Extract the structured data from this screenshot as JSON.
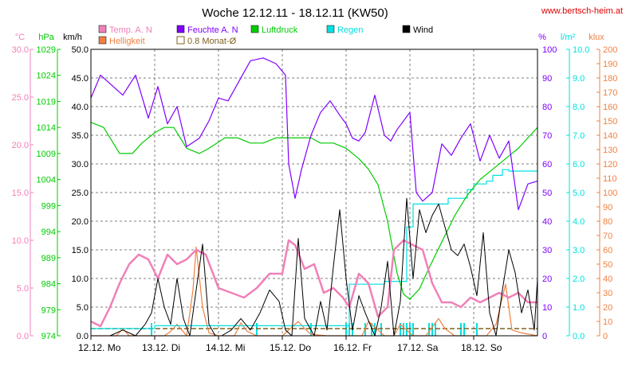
{
  "header": {
    "title": "Woche 12.12.11 - 18.12.11 (KW50)",
    "site": "www.bertsch-heim.at"
  },
  "legend": [
    {
      "label": "Temp. A. N",
      "color": "#f080b8",
      "type": "fill"
    },
    {
      "label": "Feuchte A. N",
      "color": "#8000ff",
      "type": "fill"
    },
    {
      "label": "Luftdruck",
      "color": "#00cc00",
      "type": "fill"
    },
    {
      "label": "Regen",
      "color": "#00e0e0",
      "type": "fill"
    },
    {
      "label": "Wind",
      "color": "#000000",
      "type": "fill"
    },
    {
      "label": "Helligkeit",
      "color": "#f08040",
      "type": "fill"
    },
    {
      "label": "0.8 Monat-Ø",
      "color": "#806020",
      "type": "outline"
    }
  ],
  "axes_units": {
    "temp": "°C",
    "press": "hPa",
    "wind": "km/h",
    "hum": "%",
    "rain": "l/m²",
    "lux": "klux"
  },
  "colors": {
    "temp": "#f080b8",
    "press": "#00cc00",
    "wind": "#000000",
    "hum": "#8000ff",
    "rain": "#00e0e0",
    "lux": "#f08040",
    "avg": "#806020",
    "grid": "#808080",
    "site": "#e00000"
  },
  "chart_data": {
    "type": "line",
    "x_ticks": [
      "12.12. Mo",
      "13.12. Di",
      "14.12. Mi",
      "15.12. Do",
      "16.12. Fr",
      "17.12. Sa",
      "18.12. So"
    ],
    "y_axes": {
      "temp": {
        "ticks": [
          "30.0",
          "25.0",
          "20.0",
          "15.0",
          "10.0",
          "5.0",
          "0.0"
        ],
        "range": [
          0,
          30
        ]
      },
      "press": {
        "ticks": [
          "1029",
          "1024",
          "1019",
          "1014",
          "1009",
          "1004",
          "999",
          "994",
          "989",
          "984",
          "979",
          "974"
        ],
        "range": [
          974,
          1029
        ]
      },
      "wind": {
        "ticks": [
          "50.0",
          "45.0",
          "40.0",
          "35.0",
          "30.0",
          "25.0",
          "20.0",
          "15.0",
          "10.0",
          "5.0",
          "0.0"
        ],
        "range": [
          0,
          50
        ]
      },
      "hum": {
        "ticks": [
          "100",
          "90",
          "80",
          "70",
          "60",
          "50",
          "40",
          "30",
          "20",
          "10",
          "0"
        ],
        "range": [
          0,
          100
        ]
      },
      "rain": {
        "ticks": [
          "10.0",
          "9.0",
          "8.0",
          "7.0",
          "6.0",
          "5.0",
          "4.0",
          "3.0",
          "2.0",
          "1.0",
          "0.0"
        ],
        "range": [
          0,
          10
        ]
      },
      "lux": {
        "ticks": [
          "200",
          "190",
          "180",
          "170",
          "160",
          "150",
          "140",
          "130",
          "120",
          "110",
          "100",
          "90",
          "80",
          "70",
          "60",
          "50",
          "40",
          "30",
          "20",
          "10",
          "0"
        ],
        "range": [
          0,
          200
        ]
      }
    },
    "x_range": [
      0,
      7
    ],
    "series": [
      {
        "name": "Feuchte A. N",
        "axis": "hum",
        "color": "#8000ff",
        "x": [
          0,
          0.15,
          0.3,
          0.5,
          0.7,
          0.9,
          1.05,
          1.2,
          1.35,
          1.5,
          1.7,
          1.85,
          2.0,
          2.15,
          2.3,
          2.5,
          2.7,
          2.9,
          3.05,
          3.1,
          3.2,
          3.3,
          3.45,
          3.6,
          3.75,
          3.9,
          4.0,
          4.1,
          4.2,
          4.3,
          4.45,
          4.6,
          4.7,
          4.8,
          5.0,
          5.1,
          5.2,
          5.35,
          5.5,
          5.65,
          5.8,
          5.95,
          6.1,
          6.25,
          6.4,
          6.55,
          6.7,
          6.85,
          7.0
        ],
        "y": [
          83,
          91,
          88,
          84,
          91,
          76,
          87,
          74,
          80,
          66,
          69,
          75,
          83,
          82,
          88,
          96,
          97,
          95,
          91,
          60,
          48,
          58,
          70,
          78,
          82,
          77,
          74,
          69,
          68,
          71,
          84,
          70,
          68,
          72,
          78,
          50,
          47,
          50,
          67,
          63,
          69,
          74,
          61,
          70,
          62,
          68,
          44,
          53,
          54
        ]
      },
      {
        "name": "Luftdruck",
        "axis": "press",
        "color": "#00cc00",
        "x": [
          0,
          0.2,
          0.45,
          0.65,
          0.8,
          1.0,
          1.15,
          1.3,
          1.5,
          1.7,
          1.85,
          2.1,
          2.3,
          2.5,
          2.7,
          2.9,
          3.05,
          3.25,
          3.45,
          3.6,
          3.8,
          4.0,
          4.2,
          4.35,
          4.5,
          4.65,
          4.8,
          4.9,
          5.0,
          5.15,
          5.3,
          5.5,
          5.7,
          5.9,
          6.1,
          6.3,
          6.5,
          6.7,
          6.85,
          7.0
        ],
        "y": [
          1015,
          1014,
          1009,
          1009,
          1011,
          1013,
          1014,
          1014,
          1010,
          1009,
          1010,
          1012,
          1012,
          1011,
          1011,
          1012,
          1012,
          1012,
          1012,
          1011,
          1011,
          1010,
          1008,
          1006,
          1003,
          996,
          986,
          982,
          981,
          983,
          987,
          992,
          997,
          1001,
          1004,
          1006,
          1008,
          1010,
          1012,
          1014
        ]
      },
      {
        "name": "Temp. A. N",
        "axis": "temp",
        "color": "#f080b8",
        "x": [
          0,
          0.15,
          0.3,
          0.45,
          0.6,
          0.75,
          0.9,
          1.05,
          1.2,
          1.35,
          1.5,
          1.65,
          1.8,
          2.0,
          2.2,
          2.4,
          2.6,
          2.8,
          3.0,
          3.1,
          3.2,
          3.35,
          3.5,
          3.65,
          3.8,
          3.95,
          4.05,
          4.2,
          4.35,
          4.5,
          4.65,
          4.75,
          4.9,
          5.05,
          5.2,
          5.35,
          5.5,
          5.65,
          5.8,
          5.95,
          6.1,
          6.25,
          6.4,
          6.55,
          6.7,
          6.85,
          7.0
        ],
        "y": [
          1.5,
          1.0,
          3.0,
          5.5,
          7.5,
          8.5,
          8.0,
          6.0,
          8.5,
          7.5,
          8.0,
          9.0,
          8.5,
          5.0,
          4.5,
          4.0,
          5.0,
          6.5,
          6.5,
          10.0,
          9.5,
          7.0,
          7.5,
          4.5,
          5.0,
          4.0,
          3.0,
          6.5,
          5.5,
          2.0,
          3.0,
          9.0,
          10.0,
          9.5,
          9.0,
          5.5,
          3.5,
          3.5,
          3.0,
          4.0,
          3.5,
          4.0,
          4.5,
          4.0,
          4.5,
          3.5,
          3.5
        ]
      },
      {
        "name": "Wind",
        "axis": "wind",
        "color": "#000000",
        "x": [
          0,
          0.3,
          0.5,
          0.7,
          0.85,
          0.95,
          1.05,
          1.15,
          1.25,
          1.35,
          1.45,
          1.55,
          1.65,
          1.75,
          1.85,
          1.95,
          2.05,
          2.2,
          2.35,
          2.5,
          2.65,
          2.8,
          2.95,
          3.05,
          3.15,
          3.25,
          3.35,
          3.5,
          3.6,
          3.7,
          3.8,
          3.9,
          4.0,
          4.1,
          4.2,
          4.3,
          4.45,
          4.55,
          4.65,
          4.75,
          4.85,
          4.95,
          5.05,
          5.15,
          5.25,
          5.35,
          5.45,
          5.55,
          5.65,
          5.75,
          5.85,
          5.95,
          6.05,
          6.15,
          6.25,
          6.35,
          6.45,
          6.55,
          6.65,
          6.75,
          6.85,
          6.95,
          7.0
        ],
        "y": [
          0,
          0,
          1,
          0,
          2,
          4,
          10,
          5,
          2,
          10,
          3,
          0,
          8,
          16,
          2,
          0,
          0,
          1,
          3,
          1,
          4,
          8,
          6,
          1,
          0,
          17,
          3,
          0,
          6,
          1,
          12,
          22,
          10,
          1,
          7,
          4,
          0,
          5,
          13,
          0,
          6,
          24,
          10,
          22,
          18,
          21,
          23,
          19,
          15,
          14,
          16,
          12,
          7,
          18,
          4,
          0,
          8,
          15,
          11,
          4,
          8,
          1,
          10
        ]
      },
      {
        "name": "Regen",
        "axis": "rain",
        "color": "#00e0e0",
        "x": [
          0,
          0.95,
          1.0,
          4.0,
          4.05,
          4.3,
          4.55,
          4.6,
          4.9,
          4.95,
          5.05,
          5.4,
          5.6,
          5.9,
          6.0,
          6.2,
          6.3,
          6.45,
          6.55,
          6.9,
          7.0
        ],
        "y": [
          0.25,
          0.25,
          0.35,
          0.35,
          1.8,
          1.8,
          1.8,
          1.9,
          1.9,
          3.8,
          4.6,
          4.6,
          4.8,
          5.1,
          5.3,
          5.4,
          5.6,
          5.8,
          5.75,
          5.75,
          5.75
        ]
      },
      {
        "name": "Helligkeit",
        "axis": "lux",
        "color": "#f08040",
        "x": [
          0,
          0.4,
          0.5,
          0.6,
          0.8,
          1.15,
          1.25,
          1.35,
          1.5,
          1.6,
          1.65,
          1.75,
          1.85,
          2.0,
          2.25,
          2.35,
          2.45,
          2.6,
          2.75,
          3.0,
          3.25,
          3.35,
          3.45,
          3.7,
          4.0,
          4.25,
          4.35,
          4.45,
          4.6,
          4.75,
          4.85,
          4.95,
          5.05,
          5.25,
          5.35,
          5.45,
          5.55,
          5.7,
          5.9,
          6.2,
          6.35,
          6.5,
          6.6,
          6.75,
          7.0
        ],
        "y": [
          0,
          0,
          5,
          0,
          0,
          0,
          3,
          8,
          0,
          32,
          62,
          20,
          2,
          0,
          0,
          9,
          3,
          0,
          0,
          0,
          10,
          5,
          1,
          0,
          0,
          0,
          10,
          6,
          0,
          0,
          8,
          4,
          0,
          0,
          6,
          12,
          5,
          0,
          0,
          0,
          8,
          36,
          4,
          2,
          0
        ]
      }
    ],
    "reference_lines": [
      {
        "name": "0.8 Monat-Ø",
        "axis": "rain",
        "y": 0.25,
        "color": "#806020",
        "style": "dashed"
      }
    ],
    "rain_events": [
      0.95,
      2.6,
      3.45,
      4.0,
      4.05,
      4.1,
      4.3,
      4.4,
      4.45,
      4.55,
      4.85,
      4.9,
      4.95,
      5.0,
      5.05,
      5.3,
      5.35,
      5.4,
      5.8,
      5.85,
      6.05
    ]
  }
}
